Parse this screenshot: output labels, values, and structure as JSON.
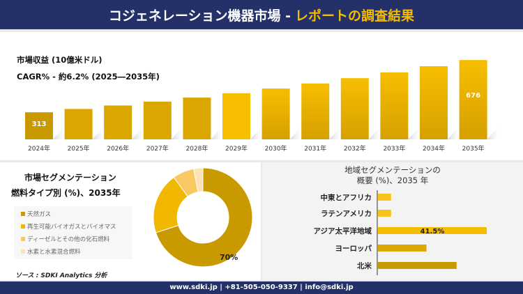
{
  "header": {
    "title_main": "コジェネレーション機器市場 -",
    "title_accent": "レポートの調査結果"
  },
  "revenue": {
    "label": "市場収益 (10億米ドル)",
    "cagr": "CAGR% - 約6.2% (2025―2035年)"
  },
  "colors": {
    "navy": "#243169",
    "gold_dark": "#C89A00",
    "gold": "#F5BD00",
    "gold_light": "#F8C862",
    "gold_pale": "#FCE2B4"
  },
  "chart_data": [
    {
      "type": "bar",
      "categories": [
        "2024年",
        "2025年",
        "2026年",
        "2027年",
        "2028年",
        "2029年",
        "2030年",
        "2031年",
        "2032年",
        "2033年",
        "2034年",
        "2035年"
      ],
      "values": [
        313,
        336,
        360,
        387,
        415,
        445,
        478,
        513,
        550,
        590,
        633,
        676
      ],
      "data_labels": {
        "2024年": "313",
        "2035年": "676"
      },
      "title": "",
      "xlabel": "",
      "ylabel": "",
      "grid": false
    },
    {
      "type": "pie",
      "donut": true,
      "title": "市場セグメンテーション",
      "subtitle": "燃料タイプ別 (%)、2035年",
      "slices": [
        {
          "name": "天然ガス",
          "value": 70,
          "color": "#C89A00",
          "label": "70%"
        },
        {
          "name": "再生可能バイオガスとバイオマス",
          "value": 20,
          "color": "#F2B800"
        },
        {
          "name": "ディーゼルとその他の化石燃料",
          "value": 7,
          "color": "#F8C862"
        },
        {
          "name": "水素と水素混合燃料",
          "value": 3,
          "color": "#FCE2B4"
        }
      ],
      "legend": "left"
    },
    {
      "type": "bar",
      "orientation": "horizontal",
      "title": "地域セグメンテーションの",
      "subtitle": "概要 (%)、2035 年",
      "categories": [
        "中東とアフリカ",
        "ラテンアメリカ",
        "アジア太平洋地域",
        "ヨーロッパ",
        "北米"
      ],
      "values": [
        5,
        5,
        41.5,
        18.5,
        30
      ],
      "colors": [
        "#F8C21A",
        "#F8C21A",
        "#F5BD00",
        "#DCA600",
        "#C89A00"
      ],
      "data_labels": {
        "アジア太平洋地域": "41.5%"
      }
    }
  ],
  "source": "ソース : SDKI Analytics 分析",
  "footer": "www.sdki.jp | +81-505-050-9337 | info@sdki.jp"
}
